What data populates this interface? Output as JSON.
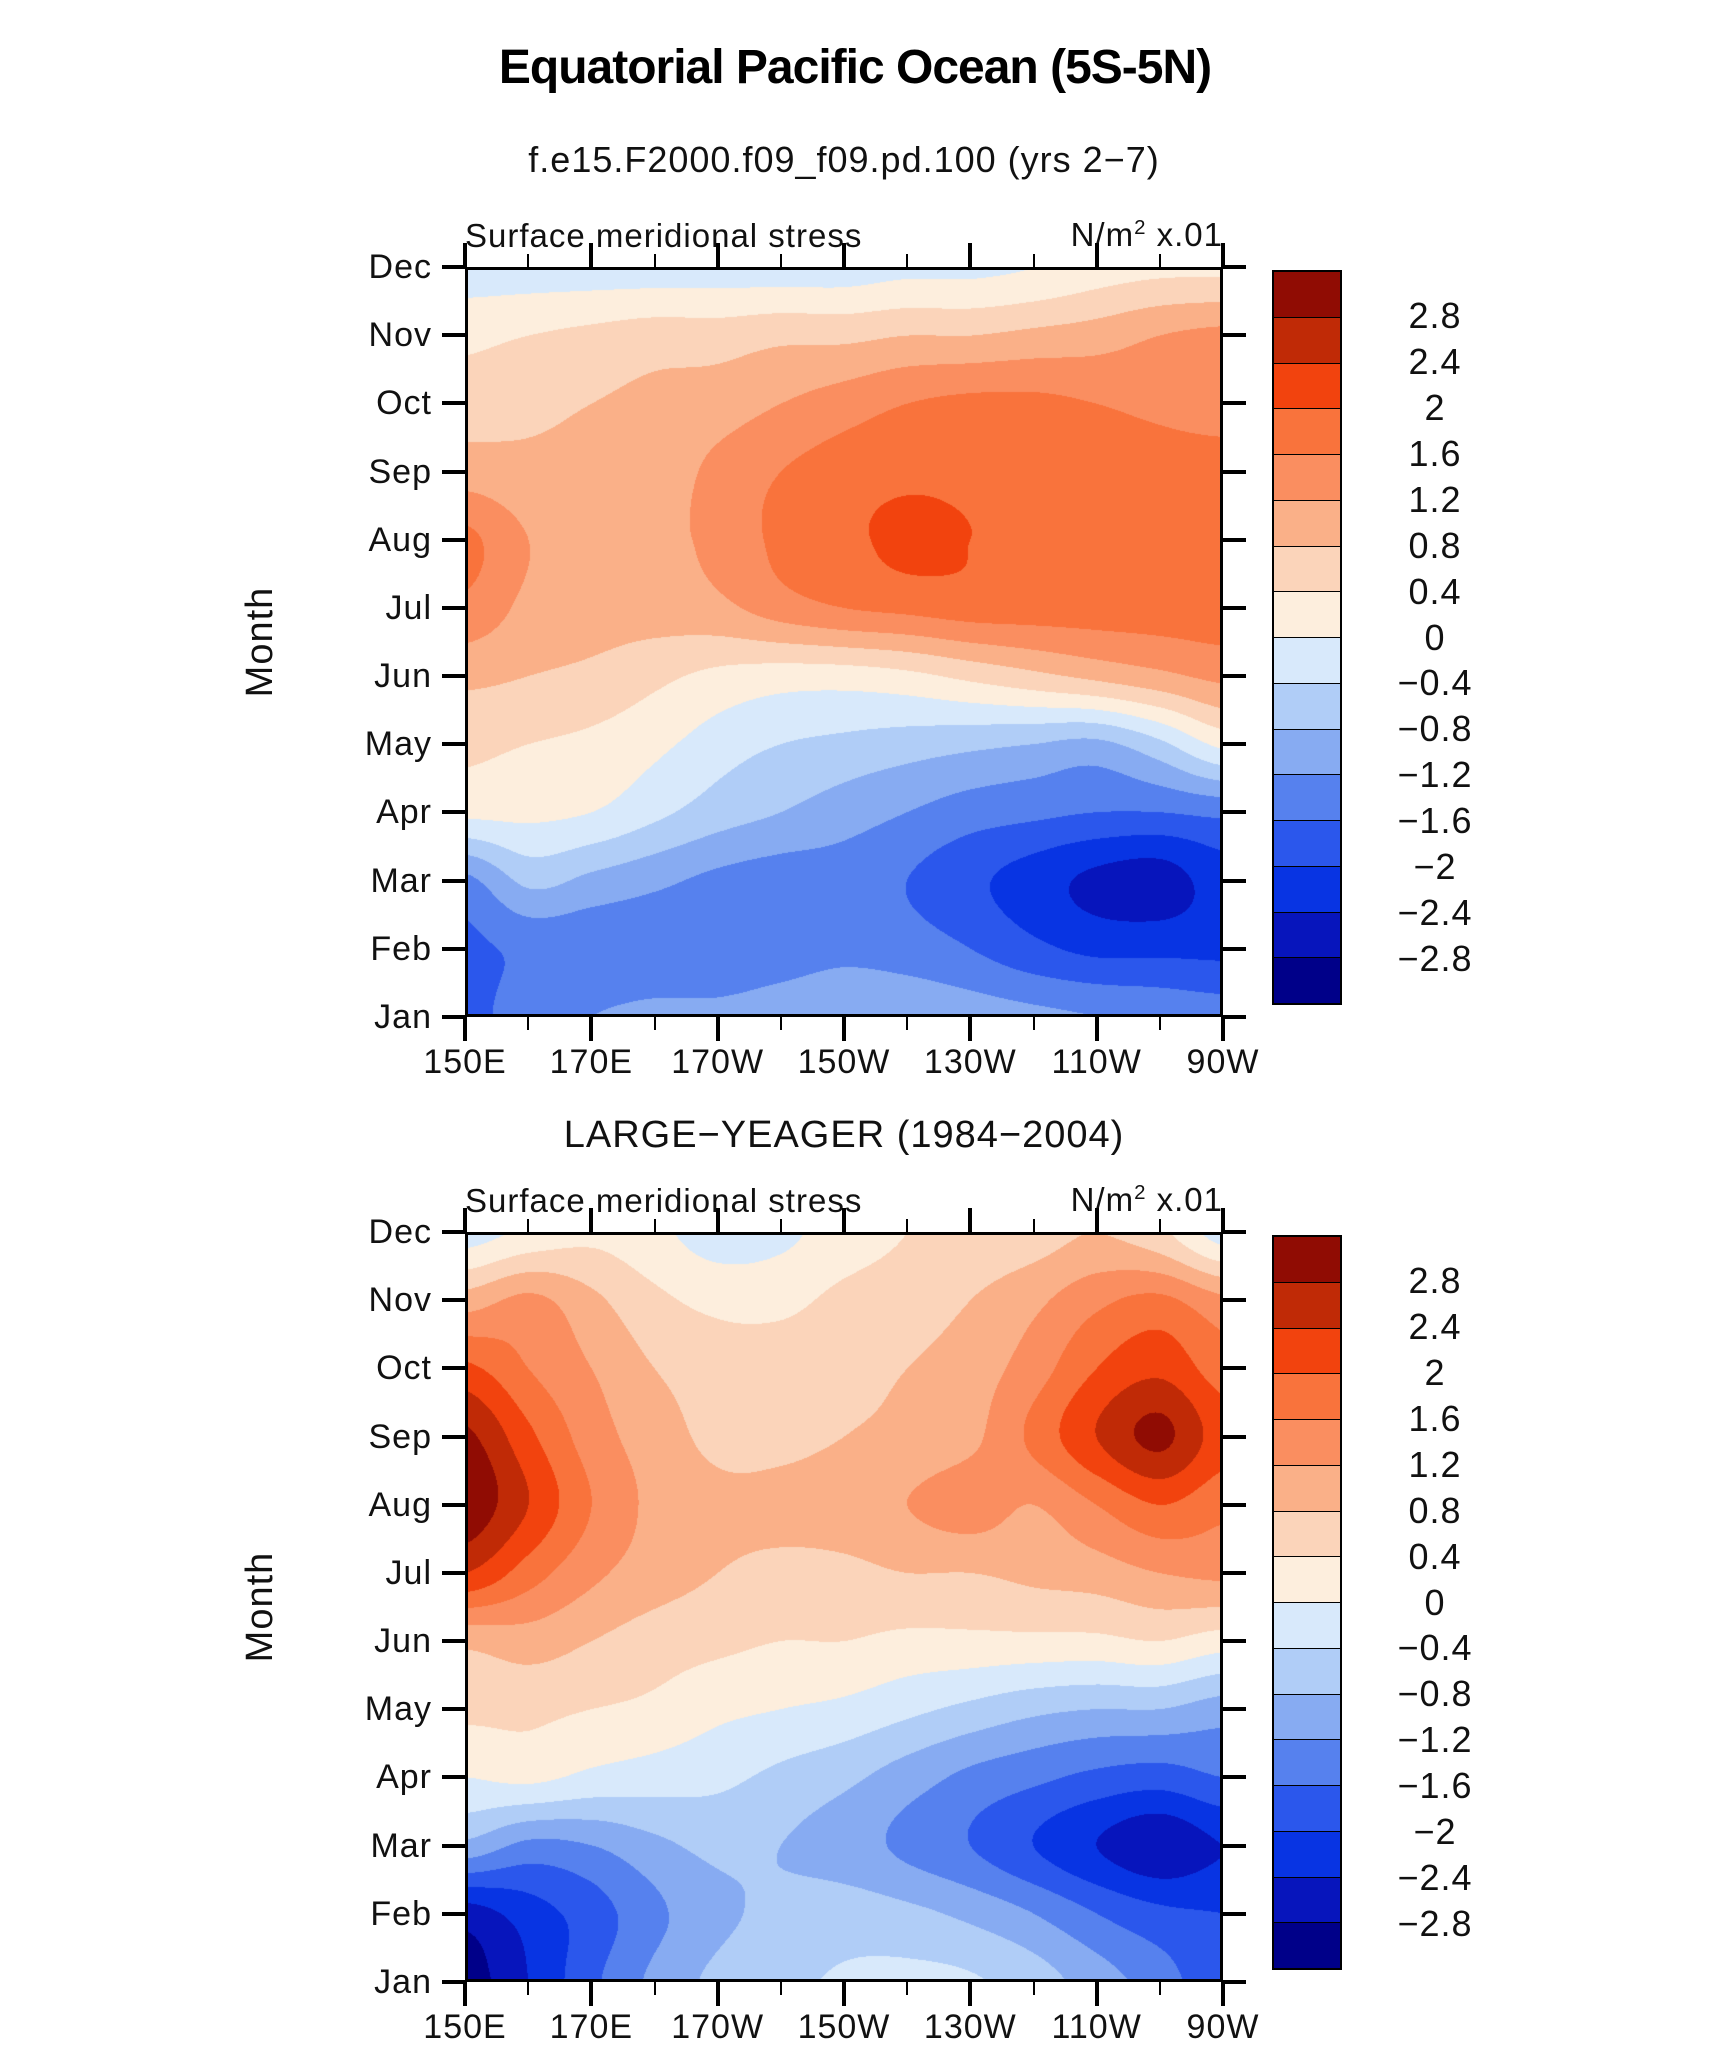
{
  "figure": {
    "title": "Equatorial Pacific Ocean (5S-5N)",
    "header_left": "Surface meridional stress",
    "units": {
      "base": "N/m",
      "sup": "2",
      "suffix": " x.01"
    },
    "ylabel": "Month"
  },
  "panels": [
    {
      "subtitle": "f.e15.F2000.f09_f09.pd.100 (yrs 2−7)"
    },
    {
      "subtitle": "LARGE−YEAGER (1984−2004)"
    }
  ],
  "axes": {
    "months_bottom_to_top": [
      "Jan",
      "Feb",
      "Mar",
      "Apr",
      "May",
      "Jun",
      "Jul",
      "Aug",
      "Sep",
      "Oct",
      "Nov",
      "Dec"
    ],
    "x_tick_labels": [
      "150E",
      "170E",
      "170W",
      "150W",
      "130W",
      "110W",
      "90W"
    ],
    "x_minor_ticks_every_deg": 10
  },
  "colorbar": {
    "tick_labels_top_to_bottom": [
      "2.8",
      "2.4",
      "2",
      "1.6",
      "1.2",
      "0.8",
      "0.4",
      "0",
      "−0.4",
      "−0.8",
      "−1.2",
      "−1.6",
      "−2",
      "−2.4",
      "−2.8"
    ],
    "levels": [
      -2.8,
      -2.4,
      -2,
      -1.6,
      -1.2,
      -0.8,
      -0.4,
      0,
      0.4,
      0.8,
      1.2,
      1.6,
      2,
      2.4,
      2.8
    ],
    "colors_low_to_high": [
      "#000089",
      "#0715BC",
      "#0834E3",
      "#2B57EC",
      "#5681EE",
      "#87ABF2",
      "#B0CDF7",
      "#D8E9FB",
      "#FDEEDD",
      "#FBD4BA",
      "#FAB088",
      "#FA8E60",
      "#F9733C",
      "#F2430E",
      "#C02A06",
      "#900C03"
    ]
  },
  "chart_data": [
    {
      "type": "heatmap",
      "title": "f.e15.F2000.f09_f09.pd.100 (yrs 2−7)",
      "subtitle": "Surface meridional stress",
      "units": "N/m2 x 0.01",
      "x_longitudes_deg_east": [
        150,
        160,
        170,
        180,
        190,
        200,
        210,
        220,
        230,
        240,
        250,
        260,
        270
      ],
      "x_tick_labels": [
        "150E",
        "170E",
        "170W",
        "150W",
        "130W",
        "110W",
        "90W"
      ],
      "y_months": [
        "Jan",
        "Feb",
        "Mar",
        "Apr",
        "May",
        "Jun",
        "Jul",
        "Aug",
        "Sep",
        "Oct",
        "Nov",
        "Dec"
      ],
      "contour_levels": [
        -2.8,
        -2.4,
        -2,
        -1.6,
        -1.2,
        -0.8,
        -0.4,
        0,
        0.4,
        0.8,
        1.2,
        1.6,
        2,
        2.4,
        2.8
      ],
      "values_rows_jan_to_dec": [
        [
          -1.8,
          -1.3,
          -1.2,
          -1.1,
          -1.1,
          -1.0,
          -0.9,
          -0.9,
          -1.0,
          -1.1,
          -1.2,
          -1.3,
          -1.4
        ],
        [
          -1.7,
          -1.5,
          -1.5,
          -1.5,
          -1.5,
          -1.4,
          -1.3,
          -1.4,
          -1.6,
          -1.9,
          -2.1,
          -2.1,
          -2.1
        ],
        [
          -1.3,
          -0.7,
          -0.9,
          -1.1,
          -1.3,
          -1.4,
          -1.4,
          -1.6,
          -1.9,
          -2.2,
          -2.5,
          -2.6,
          -2.2
        ],
        [
          0.1,
          0.1,
          0.0,
          -0.3,
          -0.6,
          -0.8,
          -1.0,
          -1.2,
          -1.4,
          -1.5,
          -1.6,
          -1.6,
          -1.5
        ],
        [
          0.5,
          0.4,
          0.3,
          0.1,
          -0.2,
          -0.4,
          -0.5,
          -0.6,
          -0.7,
          -0.8,
          -0.9,
          -0.5,
          0.1
        ],
        [
          0.9,
          0.8,
          0.7,
          0.5,
          0.3,
          0.2,
          0.2,
          0.3,
          0.5,
          0.7,
          0.9,
          1.1,
          1.3
        ],
        [
          1.5,
          1.1,
          1.0,
          1.0,
          1.1,
          1.4,
          1.6,
          1.7,
          1.8,
          1.8,
          1.8,
          1.8,
          1.8
        ],
        [
          1.7,
          1.2,
          1.0,
          1.1,
          1.3,
          1.7,
          1.9,
          2.1,
          2.0,
          1.9,
          1.9,
          1.9,
          1.8
        ],
        [
          1.0,
          0.9,
          0.9,
          1.0,
          1.3,
          1.6,
          1.8,
          1.9,
          1.9,
          1.9,
          1.8,
          1.8,
          1.8
        ],
        [
          0.6,
          0.7,
          0.8,
          0.9,
          1.0,
          1.2,
          1.4,
          1.6,
          1.7,
          1.7,
          1.6,
          1.5,
          1.4
        ],
        [
          0.3,
          0.4,
          0.5,
          0.6,
          0.6,
          0.7,
          0.7,
          0.8,
          0.8,
          0.9,
          1.0,
          1.2,
          1.3
        ],
        [
          -0.2,
          -0.2,
          -0.2,
          -0.2,
          -0.2,
          -0.2,
          -0.2,
          -0.1,
          -0.1,
          0.0,
          0.2,
          0.3,
          0.3
        ]
      ]
    },
    {
      "type": "heatmap",
      "title": "LARGE−YEAGER (1984−2004)",
      "subtitle": "Surface meridional stress",
      "units": "N/m2 x 0.01",
      "x_longitudes_deg_east": [
        150,
        160,
        170,
        180,
        190,
        200,
        210,
        220,
        230,
        240,
        250,
        260,
        270
      ],
      "x_tick_labels": [
        "150E",
        "170E",
        "170W",
        "150W",
        "130W",
        "110W",
        "90W"
      ],
      "y_months": [
        "Jan",
        "Feb",
        "Mar",
        "Apr",
        "May",
        "Jun",
        "Jul",
        "Aug",
        "Sep",
        "Oct",
        "Nov",
        "Dec"
      ],
      "contour_levels": [
        -2.8,
        -2.4,
        -2,
        -1.6,
        -1.2,
        -0.8,
        -0.4,
        0,
        0.4,
        0.8,
        1.2,
        1.6,
        2,
        2.4,
        2.8
      ],
      "values_rows_jan_to_dec": [
        [
          -3.0,
          -2.4,
          -1.7,
          -1.1,
          -0.7,
          -0.5,
          -0.35,
          -0.3,
          -0.35,
          -0.6,
          -1.0,
          -1.4,
          -1.9
        ],
        [
          -2.6,
          -2.2,
          -1.8,
          -1.3,
          -0.9,
          -0.7,
          -0.6,
          -0.7,
          -0.9,
          -1.2,
          -1.6,
          -1.9,
          -2.0
        ],
        [
          -0.9,
          -1.3,
          -1.2,
          -0.9,
          -0.7,
          -0.8,
          -1.0,
          -1.3,
          -1.6,
          -2.0,
          -2.4,
          -2.7,
          -2.4
        ],
        [
          0.0,
          0.1,
          -0.1,
          -0.2,
          -0.3,
          -0.5,
          -0.7,
          -1.0,
          -1.3,
          -1.5,
          -1.7,
          -1.8,
          -1.6
        ],
        [
          0.5,
          0.5,
          0.4,
          0.3,
          0.1,
          0.0,
          -0.1,
          -0.3,
          -0.5,
          -0.7,
          -0.8,
          -0.8,
          -1.0
        ],
        [
          0.9,
          1.0,
          0.8,
          0.6,
          0.5,
          0.4,
          0.4,
          0.3,
          0.3,
          0.3,
          0.3,
          0.4,
          0.2
        ],
        [
          2.4,
          1.8,
          1.3,
          1.0,
          0.8,
          0.7,
          0.7,
          0.8,
          0.8,
          0.9,
          1.0,
          1.2,
          1.3
        ],
        [
          3.1,
          2.4,
          1.6,
          1.1,
          0.9,
          0.9,
          1.0,
          1.2,
          1.4,
          1.2,
          1.6,
          2.0,
          1.7
        ],
        [
          2.9,
          2.1,
          1.4,
          1.0,
          0.7,
          0.7,
          0.8,
          0.9,
          1.1,
          1.7,
          2.4,
          2.9,
          2.2
        ],
        [
          2.1,
          1.6,
          1.2,
          0.8,
          0.6,
          0.6,
          0.7,
          0.8,
          1.0,
          1.4,
          2.0,
          2.3,
          1.8
        ],
        [
          1.0,
          1.3,
          0.9,
          0.5,
          0.3,
          0.3,
          0.5,
          0.6,
          0.8,
          1.1,
          1.5,
          1.7,
          1.3
        ],
        [
          -0.2,
          0.1,
          0.3,
          0.1,
          -0.2,
          -0.1,
          0.2,
          0.4,
          0.5,
          0.6,
          0.8,
          0.5,
          -0.2
        ]
      ]
    }
  ]
}
